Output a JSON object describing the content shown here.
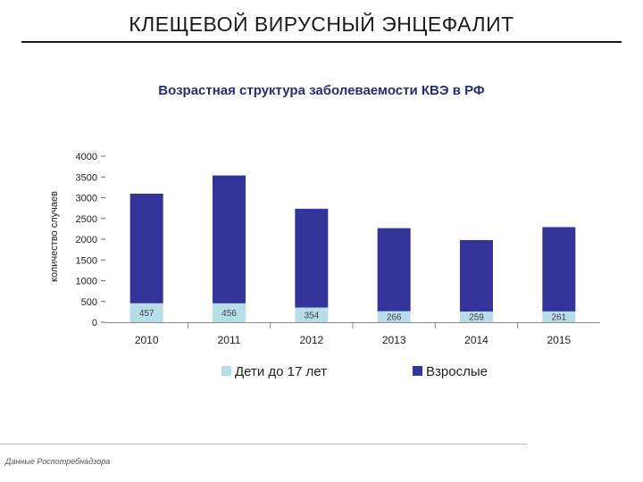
{
  "slide": {
    "title": "КЛЕЩЕВОЙ ВИРУСНЫЙ ЭНЦЕФАЛИТ",
    "source": "Данные Роспотребнадзора"
  },
  "chart_data": {
    "type": "bar",
    "stacked": true,
    "title": "Возрастная структура заболеваемости КВЭ в РФ",
    "xlabel": "",
    "ylabel": "количество случаев",
    "ylim": [
      0,
      4000
    ],
    "yticks": [
      0,
      500,
      1000,
      1500,
      2000,
      2500,
      3000,
      3500,
      4000
    ],
    "categories": [
      "2010",
      "2011",
      "2012",
      "2013",
      "2014",
      "2015"
    ],
    "series": [
      {
        "name": "Дети до 17 лет",
        "color": "#b7dde8",
        "values": [
          457,
          456,
          354,
          266,
          259,
          261
        ],
        "labels": [
          "457",
          "456",
          "354",
          "266",
          "259",
          "261"
        ]
      },
      {
        "name": "Взрослые",
        "color": "#333399",
        "values": [
          2640,
          3080,
          2380,
          2000,
          1720,
          2030
        ]
      }
    ],
    "legend_position": "bottom",
    "grid": false
  }
}
